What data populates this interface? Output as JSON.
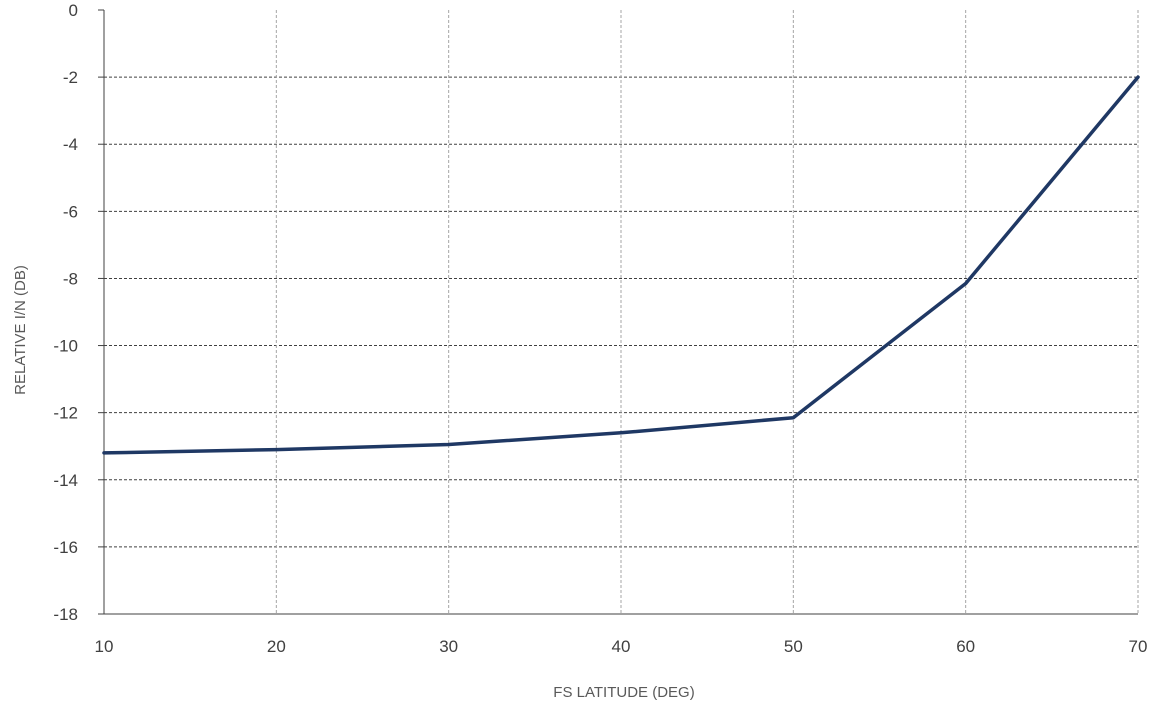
{
  "chart_data": {
    "type": "line",
    "title": "",
    "xlabel": "FS LATITUDE (DEG)",
    "ylabel": "RELATIVE I/N (DB)",
    "x": [
      10,
      20,
      30,
      40,
      50,
      60,
      70
    ],
    "series": [
      {
        "values": [
          -13.2,
          -13.1,
          -12.95,
          -12.6,
          -12.15,
          -8.15,
          -2.0
        ],
        "color": "#1f3864"
      }
    ],
    "xlim": [
      10,
      70
    ],
    "ylim": [
      -18,
      0
    ],
    "xticks": [
      "10",
      "20",
      "30",
      "40",
      "50",
      "60",
      "70"
    ],
    "yticks": [
      "0",
      "-2",
      "-4",
      "-6",
      "-8",
      "-10",
      "-12",
      "-14",
      "-16",
      "-18"
    ],
    "grid": true,
    "legend": "none",
    "colors": {
      "line": "#1f3864",
      "grid": "#a6a6a6",
      "axis": "#404040",
      "text": "#404040"
    }
  }
}
